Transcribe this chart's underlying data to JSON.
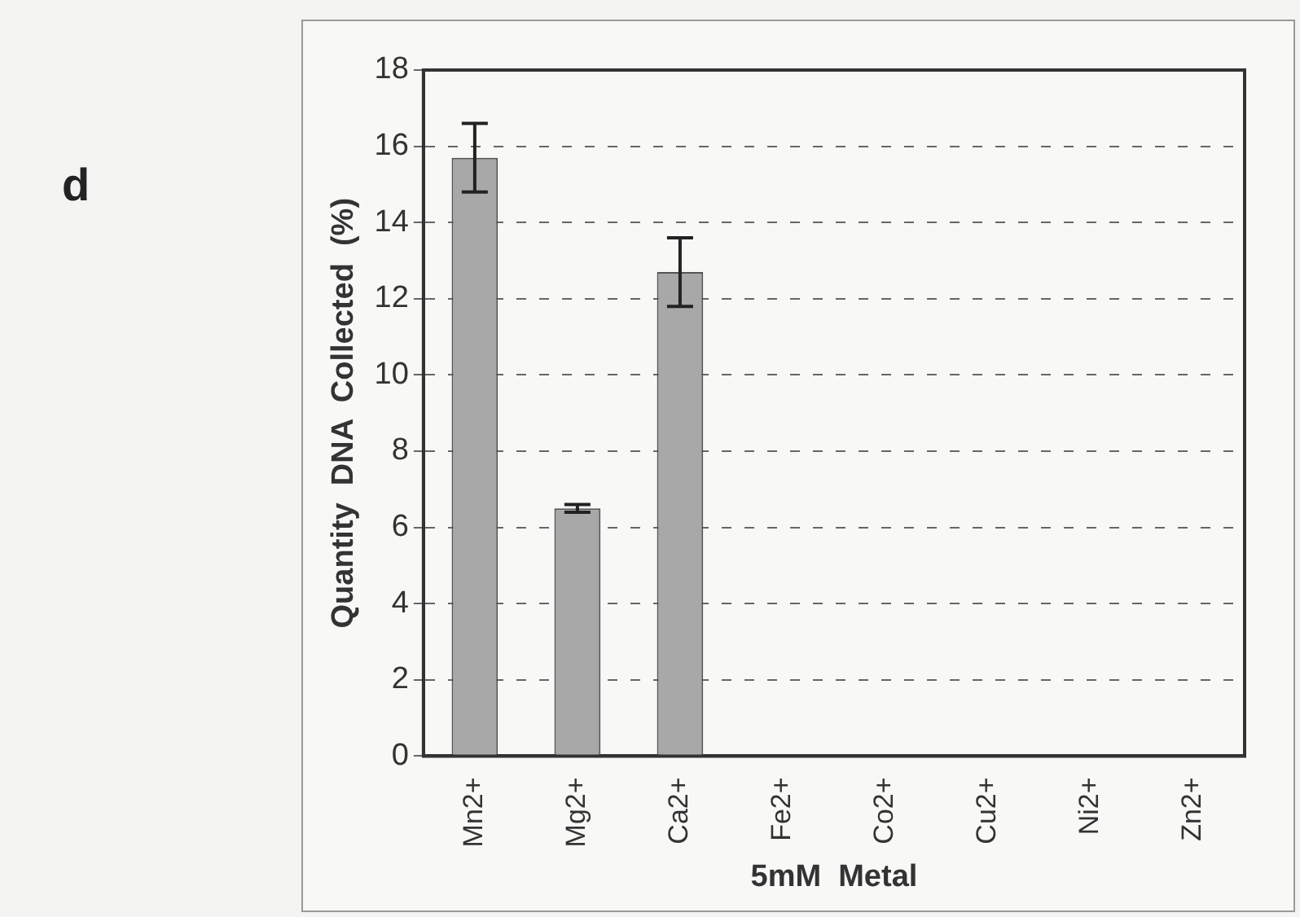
{
  "chart_data": {
    "type": "bar",
    "categories": [
      "Mn2+",
      "Mg2+",
      "Ca2+",
      "Fe2+",
      "Co2+",
      "Cu2+",
      "Ni2+",
      "Zn2+"
    ],
    "values": [
      15.7,
      6.5,
      12.7,
      0,
      0,
      0,
      0,
      0
    ],
    "errors": [
      0.9,
      0.1,
      0.9,
      null,
      null,
      null,
      null,
      null
    ],
    "color": "#a8a8a8",
    "xlabel": "5mM  Metal",
    "ylabel": "Quantity  DNA  Collected  (%)",
    "ylim": [
      0,
      18
    ],
    "yticks": [
      0,
      2,
      4,
      6,
      8,
      10,
      12,
      14,
      16,
      18
    ],
    "grid": "y",
    "annotations": [
      "d"
    ]
  }
}
